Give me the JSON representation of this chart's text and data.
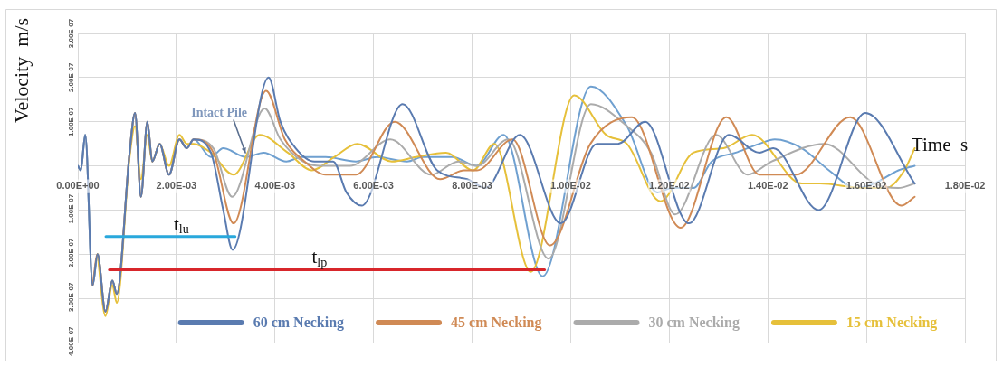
{
  "chart_data": {
    "type": "line",
    "xlabel": "Time  s",
    "ylabel": "Velocity  m/s",
    "xlim": [
      0,
      0.018
    ],
    "ylim": [
      -4e-07,
      3e-07
    ],
    "xticks": [
      {
        "value": 0,
        "label": "0.00E+00"
      },
      {
        "value": 0.002,
        "label": "2.00E-03"
      },
      {
        "value": 0.004,
        "label": "4.00E-03"
      },
      {
        "value": 0.006,
        "label": "6.00E-03"
      },
      {
        "value": 0.008,
        "label": "8.00E-03"
      },
      {
        "value": 0.01,
        "label": "1.00E-02"
      },
      {
        "value": 0.012,
        "label": "1.20E-02"
      },
      {
        "value": 0.014,
        "label": "1.40E-02"
      },
      {
        "value": 0.016,
        "label": "1.60E-02"
      },
      {
        "value": 0.018,
        "label": "1.80E-02"
      }
    ],
    "yticks": [
      {
        "value": -4e-07,
        "label": "-4.00E-07"
      },
      {
        "value": -3e-07,
        "label": "-3.00E-07"
      },
      {
        "value": -2e-07,
        "label": "-2.00E-07"
      },
      {
        "value": -1e-07,
        "label": "-1.00E-07"
      },
      {
        "value": 1e-07,
        "label": "1.00E-07"
      },
      {
        "value": 2e-07,
        "label": "2.00E-07"
      },
      {
        "value": 3e-07,
        "label": "3.00E-07"
      }
    ],
    "grid": true,
    "legend": "bottom",
    "marker": "none",
    "line_style": "solid",
    "series": [
      {
        "name": "60 cm Necking",
        "color": "#5a7bb0",
        "x": [
          0,
          6e-05,
          0.00015,
          0.0003,
          0.0004,
          0.00056,
          0.0007,
          0.00079,
          0.00105,
          0.00116,
          0.00128,
          0.00141,
          0.00151,
          0.00166,
          0.00185,
          0.00206,
          0.00221,
          0.00235,
          0.0027,
          0.00295,
          0.00314,
          0.00387,
          0.00411,
          0.00442,
          0.0048,
          0.00518,
          0.00545,
          0.00576,
          0.00659,
          0.00729,
          0.0079,
          0.00827,
          0.00897,
          0.0098,
          0.01053,
          0.01096,
          0.01151,
          0.0124,
          0.01321,
          0.01383,
          0.01411,
          0.01503,
          0.01598,
          0.01698
        ],
        "values": [
          0,
          -1e-08,
          7e-08,
          -2.7e-07,
          -2e-07,
          -3.3e-07,
          -2.6e-07,
          -2.9e-07,
          3e-08,
          1.2e-07,
          -7e-08,
          1e-07,
          1e-08,
          5e-08,
          -2e-08,
          6e-08,
          4e-08,
          6e-08,
          3e-08,
          -1e-07,
          -1.9e-07,
          2e-07,
          1e-07,
          4e-08,
          1e-08,
          1e-08,
          -6e-08,
          -9e-08,
          1.4e-07,
          -1e-08,
          -3e-08,
          -5e-08,
          7e-08,
          -1.3e-07,
          5e-08,
          5e-08,
          1e-07,
          -1.3e-07,
          7e-08,
          3e-08,
          4e-08,
          -1e-07,
          1.2e-07,
          -4e-08
        ]
      },
      {
        "name": "45 cm Necking",
        "color": "#d08a55",
        "x": [
          0.0003,
          0.0004,
          0.00056,
          0.0007,
          0.00079,
          0.00105,
          0.00116,
          0.00128,
          0.00141,
          0.00151,
          0.00166,
          0.00185,
          0.00206,
          0.00221,
          0.00235,
          0.00275,
          0.00316,
          0.00382,
          0.0042,
          0.0046,
          0.00503,
          0.00564,
          0.00643,
          0.00735,
          0.00784,
          0.0081,
          0.00882,
          0.00958,
          0.0104,
          0.01124,
          0.01223,
          0.01316,
          0.01383,
          0.01457,
          0.01567,
          0.01671,
          0.01698
        ],
        "values": [
          -2.7e-07,
          -2e-07,
          -3.3e-07,
          -2.6e-07,
          -2.9e-07,
          3e-08,
          1.2e-07,
          -7e-08,
          1e-07,
          1e-08,
          5e-08,
          -2e-08,
          6e-08,
          4e-08,
          6e-08,
          3e-08,
          -1.3e-07,
          1.7e-07,
          6e-08,
          1e-08,
          -2e-08,
          -2e-08,
          1e-07,
          -3e-08,
          -1e-08,
          -1e-08,
          6e-08,
          -1.8e-07,
          5e-08,
          1.1e-07,
          -1.4e-07,
          1.1e-07,
          -2e-08,
          -2e-08,
          1.1e-07,
          -9e-08,
          -7e-08
        ]
      },
      {
        "name": "30 cm Necking",
        "color": "#ababab",
        "x": [
          0,
          6e-05,
          0.00015,
          0.0003,
          0.0004,
          0.00056,
          0.0007,
          0.00079,
          0.00105,
          0.00116,
          0.00128,
          0.00141,
          0.00151,
          0.00166,
          0.00185,
          0.00206,
          0.00221,
          0.00235,
          0.00275,
          0.00313,
          0.00379,
          0.00411,
          0.00457,
          0.00503,
          0.00552,
          0.00634,
          0.00717,
          0.00772,
          0.0081,
          0.00873,
          0.00955,
          0.01041,
          0.01114,
          0.01163,
          0.01212,
          0.01295,
          0.01359,
          0.01408,
          0.01515,
          0.01616,
          0.01665,
          0.01698
        ],
        "values": [
          0,
          -1e-08,
          7e-08,
          -2.7e-07,
          -2e-07,
          -3.3e-07,
          -2.6e-07,
          -2.9e-07,
          3e-08,
          1.2e-07,
          -7e-08,
          1e-07,
          1e-08,
          5e-08,
          -2e-08,
          6e-08,
          4e-08,
          6e-08,
          4e-08,
          -7e-08,
          1.3e-07,
          6e-08,
          1e-08,
          0,
          0,
          6e-08,
          -2e-08,
          1e-08,
          0,
          6e-08,
          -2.1e-07,
          1.4e-07,
          9e-08,
          3e-08,
          -1.1e-07,
          7e-08,
          -2e-08,
          1e-08,
          5e-08,
          -4e-08,
          -5e-08,
          -4e-08
        ]
      },
      {
        "name": "15 cm Necking",
        "color": "#e6c03a",
        "x": [
          0.0004,
          0.00056,
          0.0007,
          0.00079,
          0.00105,
          0.00116,
          0.00128,
          0.00141,
          0.00151,
          0.00166,
          0.00185,
          0.00206,
          0.00221,
          0.00235,
          0.0027,
          0.00316,
          0.00369,
          0.00426,
          0.00475,
          0.0052,
          0.00567,
          0.00637,
          0.00686,
          0.00747,
          0.00802,
          0.00845,
          0.00919,
          0.01007,
          0.01072,
          0.01114,
          0.01182,
          0.01249,
          0.0131,
          0.01368,
          0.01469,
          0.01506,
          0.01591,
          0.0164,
          0.01677,
          0.01698
        ],
        "values": [
          -2e-07,
          -3.4e-07,
          -2.7e-07,
          -3.1e-07,
          2e-08,
          9e-08,
          -3e-08,
          7e-08,
          1e-08,
          5e-08,
          0,
          7e-08,
          5e-08,
          5e-08,
          3e-08,
          -2e-08,
          7e-08,
          3e-08,
          -1e-08,
          2e-08,
          5e-08,
          1e-08,
          2e-08,
          3e-08,
          -1e-08,
          5e-08,
          -2.4e-07,
          1.6e-07,
          7e-08,
          5e-08,
          -8e-08,
          3e-08,
          4e-08,
          7e-08,
          -4e-08,
          -4e-08,
          -5e-08,
          -5e-08,
          -1e-08,
          4e-08
        ]
      },
      {
        "color": "#6fa0d0",
        "x": [
          0,
          6e-05,
          0.00015,
          0.0003,
          0.0004,
          0.00056,
          0.0007,
          0.00079,
          0.00105,
          0.00116,
          0.00128,
          0.00141,
          0.00151,
          0.00166,
          0.00185,
          0.00206,
          0.00221,
          0.00235,
          0.0027,
          0.00295,
          0.00341,
          0.00377,
          0.00423,
          0.00454,
          0.00503,
          0.00564,
          0.00607,
          0.00668,
          0.007,
          0.0076,
          0.00809,
          0.00864,
          0.00943,
          0.01041,
          0.01114,
          0.01176,
          0.01206,
          0.01249,
          0.01286,
          0.01335,
          0.01383,
          0.01414,
          0.01469,
          0.01524,
          0.01579,
          0.01616,
          0.01665,
          0.01698
        ],
        "values": [
          0,
          -1e-08,
          7e-08,
          -2.7e-07,
          -2e-07,
          -3.3e-07,
          -2.6e-07,
          -2.9e-07,
          3e-08,
          1.2e-07,
          -7e-08,
          1e-07,
          1e-08,
          5e-08,
          -2e-08,
          6e-08,
          4e-08,
          6e-08,
          2e-08,
          4e-08,
          2e-08,
          3e-08,
          1e-08,
          2e-08,
          2e-08,
          1e-08,
          2e-08,
          1e-08,
          2e-08,
          2e-08,
          0,
          7e-08,
          -2.5e-07,
          1.8e-07,
          9e-08,
          -6e-08,
          -5e-08,
          -5e-08,
          1e-08,
          3e-08,
          5e-08,
          6e-08,
          4e-08,
          -1e-08,
          -5e-08,
          -4e-08,
          -1e-08,
          0
        ]
      },
      {
        "color": "#29a8dc",
        "x": [
          0.00057,
          0.00319
        ],
        "values": [
          -1.6e-07,
          -1.6e-07
        ]
      },
      {
        "color": "#d8262b",
        "x": [
          0.00064,
          0.00947
        ],
        "values": [
          -2.35e-07,
          -2.35e-07
        ]
      }
    ],
    "annotations": [
      {
        "text": "Intact Pile",
        "x": 0.0034,
        "y": 3e-08
      },
      {
        "text": "t$_{lu}$",
        "x": 0.0021,
        "y": -1.6e-07
      },
      {
        "text": "t$_{lp}$",
        "x": 0.0049,
        "y": -2.35e-07
      }
    ]
  }
}
